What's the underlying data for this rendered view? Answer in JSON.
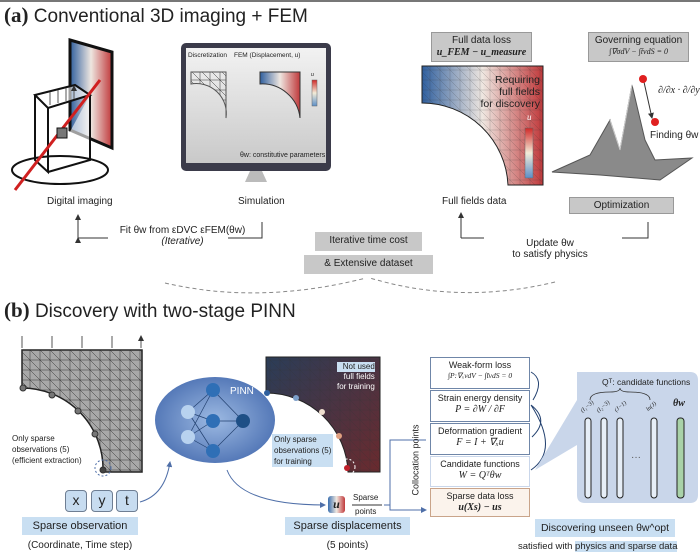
{
  "panel_a": {
    "label": "(a)",
    "title": "Conventional 3D imaging + FEM",
    "monitor": {
      "discretization": "Discretization",
      "fem": "FEM (Displacement, u)",
      "colorbar_label": "u",
      "params": "θw: constitutive parameters"
    },
    "full_data_loss": {
      "title": "Full data loss",
      "equation": "u_FEM − u_measure"
    },
    "governing": {
      "title": "Governing equation",
      "equation": "∫∇σdV − ∫t̄vdS = 0"
    },
    "field_note": [
      "Requiring",
      "full fields",
      "for discovery"
    ],
    "field_colorbar_label": "u",
    "gradient": "∂/∂x · ∂/∂y",
    "finding": "Finding θw",
    "labels": {
      "digital_imaging": "Digital imaging",
      "simulation": "Simulation",
      "full_fields": "Full fields data",
      "optimization": "Optimization"
    },
    "fit_text": "Fit θw from εDVC εFEM(θw)",
    "fit_sub": "(Iterative)",
    "cost_1": "Iterative time cost",
    "cost_2": "& Extensive dataset",
    "update_1": "Update θw",
    "update_2": "to satisfy physics"
  },
  "panel_b": {
    "label": "(b)",
    "title": "Discovery with  two-stage PINN",
    "sparse_note": [
      "Only sparse",
      "observations (5)",
      "(efficient extraction)"
    ],
    "pinn": "PINN",
    "not_used": [
      "Not used",
      "full fields",
      "for training"
    ],
    "training_note": [
      "Only sparse",
      "observations (5)",
      "for training"
    ],
    "inputs": [
      "x",
      "y",
      "t"
    ],
    "sparse_obs": "Sparse observation",
    "sparse_obs_sub": "(Coordinate, Time step)",
    "u_symbol": "u",
    "sparse_points": [
      "Sparse",
      "points"
    ],
    "sparse_disp": "Sparse displacements",
    "sparse_disp_sub": "(5 points)",
    "collocation": "Collocation points",
    "boxes": [
      {
        "title": "Weak-form loss",
        "eq": "∫P:∇ₓvdV − ∫t̄vdS = 0"
      },
      {
        "title": "Strain energy density",
        "eq": "P = ∂W / ∂F"
      },
      {
        "title": "Deformation gradient",
        "eq": "F = I + ∇ₓu"
      },
      {
        "title": "Candidate functions",
        "eq": "W = Qᵀθw"
      },
      {
        "title": "Sparse data loss",
        "eq": "u(Xs) − us"
      }
    ],
    "candidate_title": "Qᵀ: candidate functions",
    "candidate_terms": [
      "(I₁−3)",
      "(I₂−3)",
      "(J−1)",
      "ln(J)"
    ],
    "ellipsis": "···",
    "theta": "θw",
    "discovering": "Discovering unseen θw^opt",
    "satisfied_prefix": "satisfied with ",
    "satisfied_hl": "physics and sparse data"
  },
  "colors": {
    "accent_blue": "#c9dff2",
    "gray_box": "#c8c8c8",
    "red_point": "#e02020",
    "field_blue": "#3b6fae",
    "field_red": "#c0393b"
  }
}
